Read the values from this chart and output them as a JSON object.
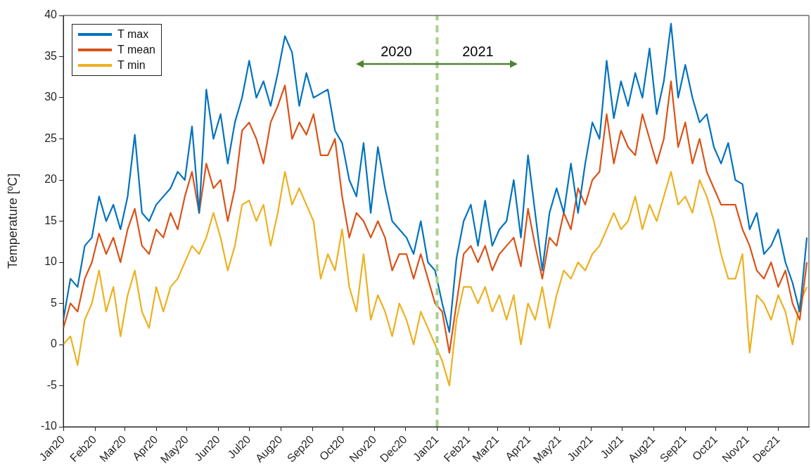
{
  "chart_data": {
    "type": "line",
    "ylabel": "Temperature [ºC]",
    "x": [
      "2020-01-01",
      "2020-01-08",
      "2020-01-15",
      "2020-01-22",
      "2020-01-29",
      "2020-02-05",
      "2020-02-12",
      "2020-02-19",
      "2020-02-26",
      "2020-03-04",
      "2020-03-11",
      "2020-03-18",
      "2020-03-25",
      "2020-04-01",
      "2020-04-08",
      "2020-04-15",
      "2020-04-22",
      "2020-04-29",
      "2020-05-06",
      "2020-05-13",
      "2020-05-20",
      "2020-05-27",
      "2020-06-03",
      "2020-06-10",
      "2020-06-17",
      "2020-06-24",
      "2020-07-01",
      "2020-07-08",
      "2020-07-15",
      "2020-07-22",
      "2020-07-29",
      "2020-08-05",
      "2020-08-12",
      "2020-08-19",
      "2020-08-26",
      "2020-09-02",
      "2020-09-09",
      "2020-09-16",
      "2020-09-23",
      "2020-09-30",
      "2020-10-07",
      "2020-10-14",
      "2020-10-21",
      "2020-10-28",
      "2020-11-04",
      "2020-11-11",
      "2020-11-18",
      "2020-11-25",
      "2020-12-02",
      "2020-12-09",
      "2020-12-16",
      "2020-12-23",
      "2020-12-30",
      "2021-01-06",
      "2021-01-13",
      "2021-01-20",
      "2021-01-27",
      "2021-02-03",
      "2021-02-10",
      "2021-02-17",
      "2021-02-24",
      "2021-03-03",
      "2021-03-10",
      "2021-03-17",
      "2021-03-24",
      "2021-03-31",
      "2021-04-07",
      "2021-04-14",
      "2021-04-21",
      "2021-04-28",
      "2021-05-05",
      "2021-05-12",
      "2021-05-19",
      "2021-05-26",
      "2021-06-02",
      "2021-06-09",
      "2021-06-16",
      "2021-06-23",
      "2021-06-30",
      "2021-07-07",
      "2021-07-14",
      "2021-07-21",
      "2021-07-28",
      "2021-08-04",
      "2021-08-11",
      "2021-08-18",
      "2021-08-25",
      "2021-09-01",
      "2021-09-08",
      "2021-09-15",
      "2021-09-22",
      "2021-09-29",
      "2021-10-06",
      "2021-10-13",
      "2021-10-20",
      "2021-10-27",
      "2021-11-03",
      "2021-11-10",
      "2021-11-17",
      "2021-11-24",
      "2021-12-01",
      "2021-12-08",
      "2021-12-15",
      "2021-12-22",
      "2021-12-29"
    ],
    "series": [
      {
        "name": "T max",
        "color": "#0072bd",
        "values": [
          3,
          8,
          7,
          12,
          13,
          18,
          15,
          17,
          14,
          18,
          25.5,
          16,
          15,
          17,
          18,
          19,
          21,
          20,
          26.5,
          16,
          31,
          25,
          28,
          22,
          27,
          30,
          34.5,
          30,
          32,
          29,
          33,
          37.5,
          35.5,
          29,
          33,
          30,
          30.5,
          31,
          26,
          24.5,
          20,
          18,
          24.5,
          16,
          24,
          19,
          15,
          14,
          13,
          11,
          15,
          10,
          9,
          5,
          1.5,
          10.5,
          15,
          17,
          12,
          17.5,
          12,
          14,
          15,
          20,
          13,
          23,
          16,
          9,
          16,
          19,
          16,
          22,
          16,
          22,
          27,
          25,
          34.5,
          27.5,
          32,
          29,
          33,
          30,
          36,
          28,
          32,
          39,
          30,
          34,
          30,
          27,
          28,
          24,
          22,
          24.5,
          20,
          19.5,
          14,
          16,
          11,
          12,
          14,
          10,
          7.5,
          4,
          13
        ]
      },
      {
        "name": "T mean",
        "color": "#d95319",
        "values": [
          2,
          5,
          4,
          8,
          10,
          13.5,
          11,
          13,
          10,
          14,
          16.5,
          12,
          11,
          14,
          13,
          16,
          14,
          18,
          21,
          16,
          22,
          19,
          20,
          15,
          19,
          26,
          27,
          25,
          22,
          27,
          29,
          31.5,
          25,
          27,
          25.5,
          28,
          23,
          23,
          25,
          18,
          13,
          16,
          15,
          13,
          15,
          13,
          9,
          11,
          11,
          8,
          11,
          8,
          5,
          4,
          -1,
          5,
          11,
          12,
          10,
          12,
          9,
          11,
          12,
          13,
          9.5,
          16.5,
          12,
          8,
          13,
          12,
          16,
          14,
          19,
          17,
          20,
          21,
          28,
          22,
          26,
          24,
          23,
          28,
          25,
          22,
          25,
          32,
          24,
          27,
          22,
          25,
          21,
          19,
          17,
          17,
          17,
          14,
          12,
          9,
          8,
          10,
          7,
          9,
          5,
          3,
          10
        ]
      },
      {
        "name": "T min",
        "color": "#edb120",
        "values": [
          0,
          1,
          -2.5,
          3,
          5,
          9,
          4,
          7,
          1,
          6,
          9,
          4,
          2,
          7,
          4,
          7,
          8,
          10,
          12,
          11,
          13,
          16,
          13,
          9,
          12,
          17,
          17.5,
          15,
          17,
          12,
          16,
          21,
          17,
          19,
          17,
          15,
          8,
          11,
          9,
          14,
          7,
          4,
          11,
          3,
          6,
          4,
          1,
          5,
          3,
          0,
          4,
          2,
          0,
          -2,
          -5,
          3,
          7,
          7,
          5,
          7,
          4,
          6,
          3,
          6,
          0,
          5,
          3,
          7,
          2,
          6,
          9,
          8,
          10,
          9,
          11,
          12,
          14,
          16,
          14,
          15,
          18,
          14,
          17,
          15,
          18,
          21,
          17,
          18,
          16,
          20,
          18,
          15,
          11,
          8,
          8,
          11,
          -1,
          6,
          5,
          3,
          6,
          4,
          0,
          5,
          7
        ]
      }
    ],
    "xlim": [
      "2020-01-01",
      "2021-12-31"
    ],
    "xticks": [
      {
        "value": "2020-01-01",
        "label": "Jan20"
      },
      {
        "value": "2020-02-01",
        "label": "Feb20"
      },
      {
        "value": "2020-03-01",
        "label": "Mar20"
      },
      {
        "value": "2020-04-01",
        "label": "Apr20"
      },
      {
        "value": "2020-05-01",
        "label": "May20"
      },
      {
        "value": "2020-06-01",
        "label": "Jun20"
      },
      {
        "value": "2020-07-01",
        "label": "Jul20"
      },
      {
        "value": "2020-08-01",
        "label": "Aug20"
      },
      {
        "value": "2020-09-01",
        "label": "Sep20"
      },
      {
        "value": "2020-10-01",
        "label": "Oct20"
      },
      {
        "value": "2020-11-01",
        "label": "Nov20"
      },
      {
        "value": "2020-12-01",
        "label": "Dec20"
      },
      {
        "value": "2021-01-01",
        "label": "Jan21"
      },
      {
        "value": "2021-02-01",
        "label": "Feb21"
      },
      {
        "value": "2021-03-01",
        "label": "Mar21"
      },
      {
        "value": "2021-04-01",
        "label": "Apr21"
      },
      {
        "value": "2021-05-01",
        "label": "May21"
      },
      {
        "value": "2021-06-01",
        "label": "Jun21"
      },
      {
        "value": "2021-07-01",
        "label": "Jul21"
      },
      {
        "value": "2021-08-01",
        "label": "Aug21"
      },
      {
        "value": "2021-09-01",
        "label": "Sep21"
      },
      {
        "value": "2021-10-01",
        "label": "Oct21"
      },
      {
        "value": "2021-11-01",
        "label": "Nov21"
      },
      {
        "value": "2021-12-01",
        "label": "Dec21"
      }
    ],
    "ylim": [
      -10,
      40
    ],
    "yticks": [
      -10,
      -5,
      0,
      5,
      10,
      15,
      20,
      25,
      30,
      35,
      40
    ],
    "ref_lines": [
      {
        "axis": "x",
        "value": "2021-01-01",
        "color": "#a9d18e",
        "line_style": "dashed"
      }
    ],
    "annotations": [
      "2020",
      "2021"
    ],
    "grid": false,
    "legend": "top left",
    "marker": "none",
    "line_style": "solid"
  }
}
